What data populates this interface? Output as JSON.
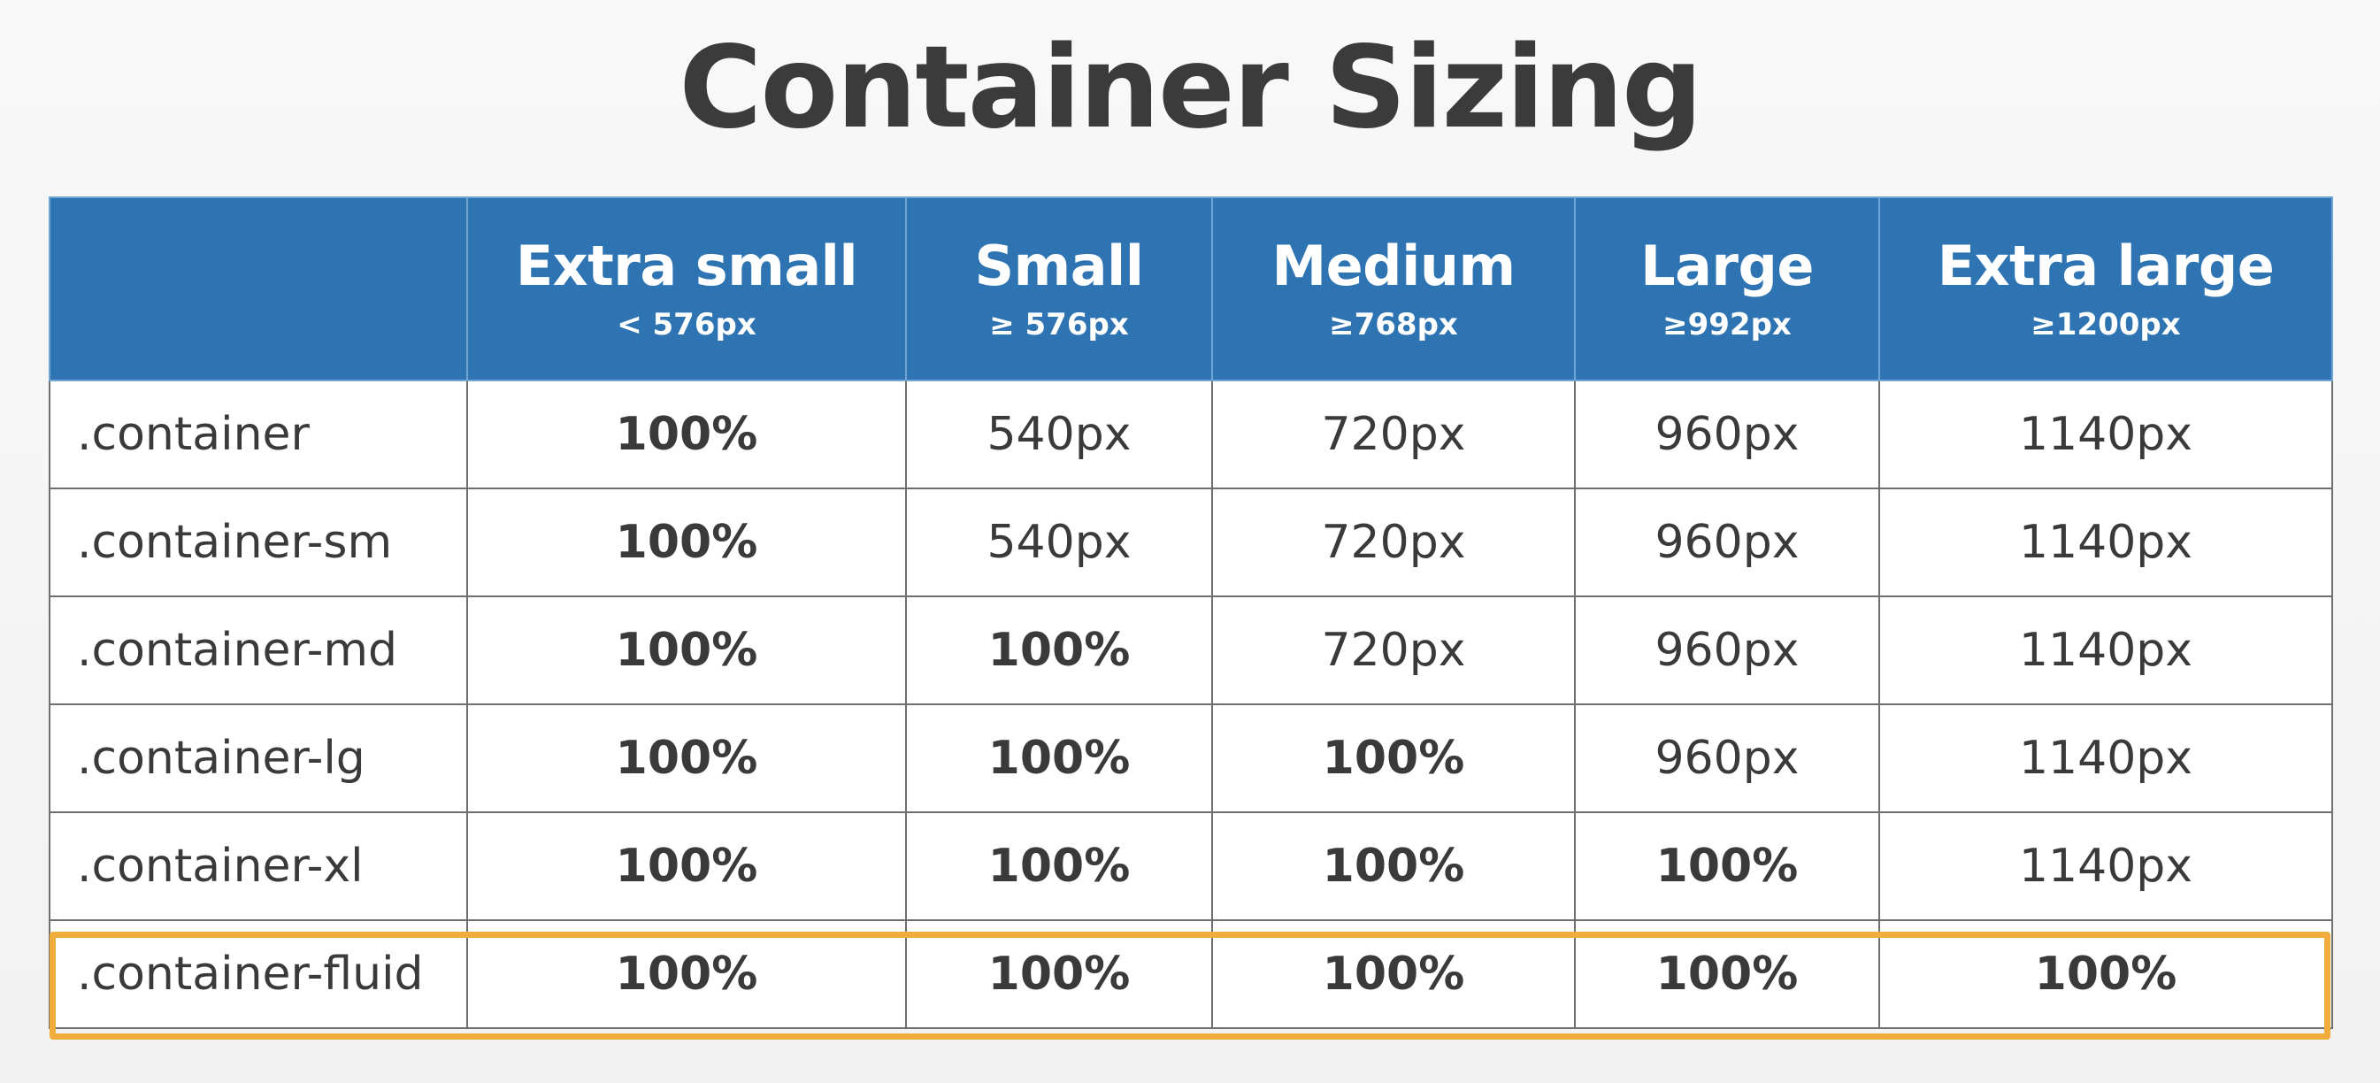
{
  "title": "Container Sizing",
  "columns": [
    {
      "name": "Extra small",
      "range": "< 576px"
    },
    {
      "name": "Small",
      "range": "≥ 576px"
    },
    {
      "name": "Medium",
      "range": "≥768px"
    },
    {
      "name": "Large",
      "range": "≥992px"
    },
    {
      "name": "Extra large",
      "range": "≥1200px"
    }
  ],
  "rows": [
    {
      "class": ".container",
      "values": [
        "100%",
        "540px",
        "720px",
        "960px",
        "1140px"
      ]
    },
    {
      "class": ".container-sm",
      "values": [
        "100%",
        "540px",
        "720px",
        "960px",
        "1140px"
      ]
    },
    {
      "class": ".container-md",
      "values": [
        "100%",
        "100%",
        "720px",
        "960px",
        "1140px"
      ]
    },
    {
      "class": ".container-lg",
      "values": [
        "100%",
        "100%",
        "100%",
        "960px",
        "1140px"
      ]
    },
    {
      "class": ".container-xl",
      "values": [
        "100%",
        "100%",
        "100%",
        "100%",
        "1140px"
      ]
    },
    {
      "class": ".container-fluid",
      "values": [
        "100%",
        "100%",
        "100%",
        "100%",
        "100%"
      ]
    }
  ],
  "highlighted_row": ".container-fluid",
  "colors": {
    "header_bg": "#2e74b3",
    "highlight": "#f0ad3c",
    "text": "#3a3a3a"
  }
}
